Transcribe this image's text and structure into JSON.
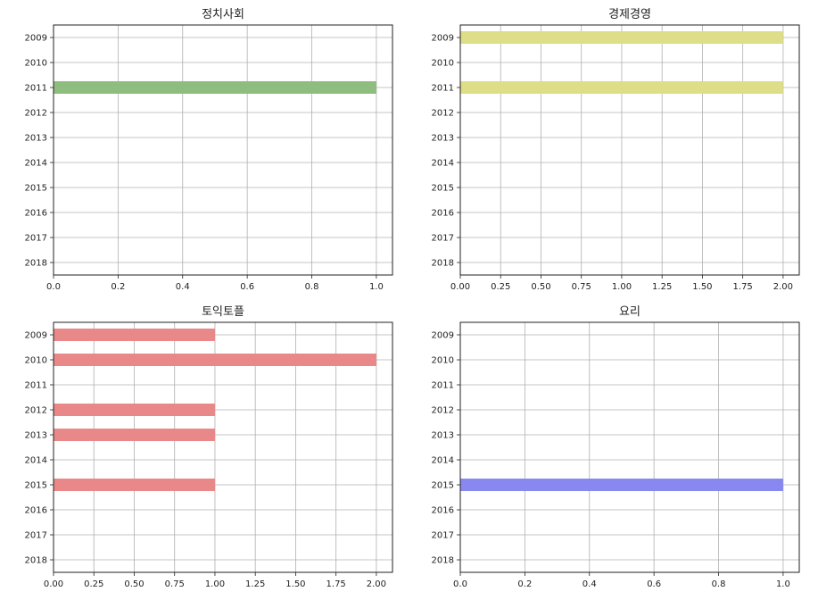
{
  "chart_data": [
    {
      "type": "barh",
      "title": "정치사회",
      "categories": [
        "2009",
        "2010",
        "2011",
        "2012",
        "2013",
        "2014",
        "2015",
        "2016",
        "2017",
        "2018"
      ],
      "values": [
        0,
        0,
        1,
        0,
        0,
        0,
        0,
        0,
        0,
        0
      ],
      "xlim": [
        0,
        1.05
      ],
      "xticks": [
        "0.0",
        "0.2",
        "0.4",
        "0.6",
        "0.8",
        "1.0"
      ],
      "color": "#8fbc7f",
      "grid": true
    },
    {
      "type": "barh",
      "title": "경제경영",
      "categories": [
        "2009",
        "2010",
        "2011",
        "2012",
        "2013",
        "2014",
        "2015",
        "2016",
        "2017",
        "2018"
      ],
      "values": [
        2,
        0,
        2,
        0,
        0,
        0,
        0,
        0,
        0,
        0
      ],
      "xlim": [
        0,
        2.1
      ],
      "xticks": [
        "0.00",
        "0.25",
        "0.50",
        "0.75",
        "1.00",
        "1.25",
        "1.50",
        "1.75",
        "2.00"
      ],
      "color": "#dede88",
      "grid": true
    },
    {
      "type": "barh",
      "title": "토익토플",
      "categories": [
        "2009",
        "2010",
        "2011",
        "2012",
        "2013",
        "2014",
        "2015",
        "2016",
        "2017",
        "2018"
      ],
      "values": [
        1,
        2,
        0,
        1,
        1,
        0,
        1,
        0,
        0,
        0
      ],
      "xlim": [
        0,
        2.1
      ],
      "xticks": [
        "0.00",
        "0.25",
        "0.50",
        "0.75",
        "1.00",
        "1.25",
        "1.50",
        "1.75",
        "2.00"
      ],
      "color": "#e88888",
      "grid": true
    },
    {
      "type": "barh",
      "title": "요리",
      "categories": [
        "2009",
        "2010",
        "2011",
        "2012",
        "2013",
        "2014",
        "2015",
        "2016",
        "2017",
        "2018"
      ],
      "values": [
        0,
        0,
        0,
        0,
        0,
        0,
        1,
        0,
        0,
        0
      ],
      "xlim": [
        0,
        1.05
      ],
      "xticks": [
        "0.0",
        "0.2",
        "0.4",
        "0.6",
        "0.8",
        "1.0"
      ],
      "color": "#8888f0",
      "grid": true
    }
  ]
}
